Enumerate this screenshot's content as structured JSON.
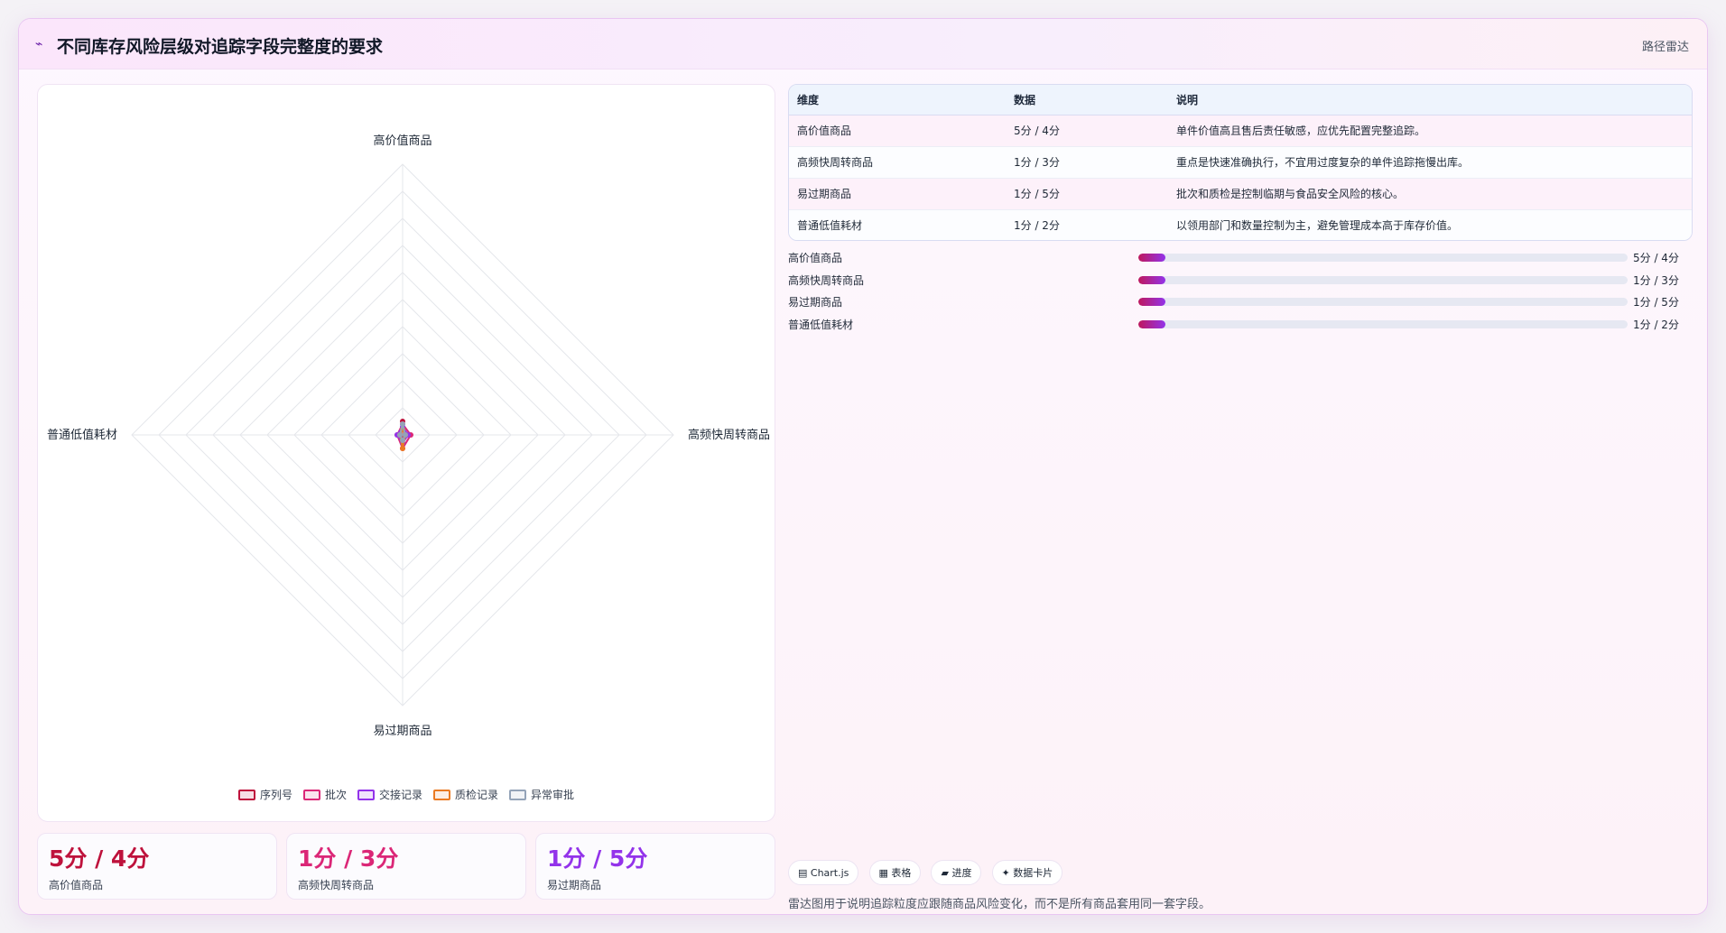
{
  "header": {
    "icon": "route-icon",
    "title": "不同库存风险层级对追踪字段完整度的要求",
    "subtitle": "路径雷达"
  },
  "chart_data": {
    "type": "radar",
    "axes": [
      "高价值商品",
      "高频快周转商品",
      "易过期商品",
      "普通低值耗材"
    ],
    "rmax": 100,
    "series": [
      {
        "name": "序列号",
        "values": [
          5,
          1,
          1,
          1
        ],
        "color": "#be123c"
      },
      {
        "name": "批次",
        "values": [
          4,
          3,
          5,
          2
        ],
        "color": "#db2777"
      },
      {
        "name": "交接记录",
        "values": [
          3,
          2,
          3,
          2
        ],
        "color": "#9333ea"
      },
      {
        "name": "质检记录",
        "values": [
          2,
          1,
          5,
          1
        ],
        "color": "#ea7a22"
      },
      {
        "name": "异常审批",
        "values": [
          4,
          1,
          2,
          1
        ],
        "color": "#94a3b8"
      }
    ],
    "grid": true,
    "legend_position": "bottom"
  },
  "stats": [
    {
      "value": "5分 / 4分",
      "label": "高价值商品",
      "color": "#be123c"
    },
    {
      "value": "1分 / 3分",
      "label": "高频快周转商品",
      "color": "#db2777"
    },
    {
      "value": "1分 / 5分",
      "label": "易过期商品",
      "color": "#9333ea"
    }
  ],
  "table": {
    "headers": [
      "维度",
      "数据",
      "说明"
    ],
    "rows": [
      [
        "高价值商品",
        "5分 / 4分",
        "单件价值高且售后责任敏感，应优先配置完整追踪。"
      ],
      [
        "高频快周转商品",
        "1分 / 3分",
        "重点是快速准确执行，不宜用过度复杂的单件追踪拖慢出库。"
      ],
      [
        "易过期商品",
        "1分 / 5分",
        "批次和质检是控制临期与食品安全风险的核心。"
      ],
      [
        "普通低值耗材",
        "1分 / 2分",
        "以领用部门和数量控制为主，避免管理成本高于库存价值。"
      ]
    ]
  },
  "progress": [
    {
      "label": "高价值商品",
      "value": "5分 / 4分",
      "fill": 0.055
    },
    {
      "label": "高频快周转商品",
      "value": "1分 / 3分",
      "fill": 0.055
    },
    {
      "label": "易过期商品",
      "value": "1分 / 5分",
      "fill": 0.055
    },
    {
      "label": "普通低值耗材",
      "value": "1分 / 2分",
      "fill": 0.055
    }
  ],
  "chips": [
    "▤ Chart.js",
    "▦ 表格",
    "▰ 进度",
    "✦ 数据卡片"
  ],
  "footnote": "雷达图用于说明追踪粒度应跟随商品风险变化，而不是所有商品套用同一套字段。"
}
